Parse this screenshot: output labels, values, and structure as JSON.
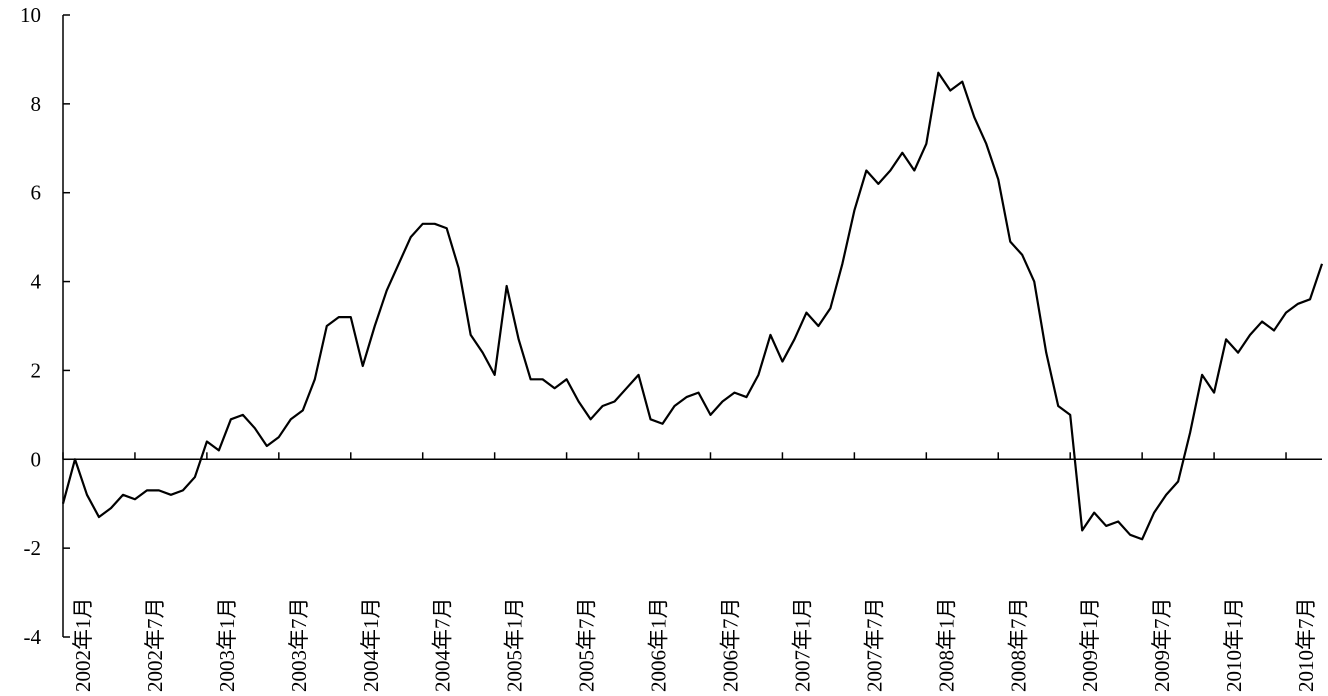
{
  "chart_data": {
    "type": "line",
    "categories": [
      "2002年1月",
      null,
      null,
      null,
      null,
      null,
      "2002年7月",
      null,
      null,
      null,
      null,
      null,
      "2003年1月",
      null,
      null,
      null,
      null,
      null,
      "2003年7月",
      null,
      null,
      null,
      null,
      null,
      "2004年1月",
      null,
      null,
      null,
      null,
      null,
      "2004年7月",
      null,
      null,
      null,
      null,
      null,
      "2005年1月",
      null,
      null,
      null,
      null,
      null,
      "2005年7月",
      null,
      null,
      null,
      null,
      null,
      "2006年1月",
      null,
      null,
      null,
      null,
      null,
      "2006年7月",
      null,
      null,
      null,
      null,
      null,
      "2007年1月",
      null,
      null,
      null,
      null,
      null,
      "2007年7月",
      null,
      null,
      null,
      null,
      null,
      "2008年1月",
      null,
      null,
      null,
      null,
      null,
      "2008年7月",
      null,
      null,
      null,
      null,
      null,
      "2009年1月",
      null,
      null,
      null,
      null,
      null,
      "2009年7月",
      null,
      null,
      null,
      null,
      null,
      "2010年1月",
      null,
      null,
      null,
      null,
      null,
      "2010年7月",
      null,
      null,
      null
    ],
    "values": [
      -1.0,
      0.0,
      -0.8,
      -1.3,
      -1.1,
      -0.8,
      -0.9,
      -0.7,
      -0.7,
      -0.8,
      -0.7,
      -0.4,
      0.4,
      0.2,
      0.9,
      1.0,
      0.7,
      0.3,
      0.5,
      0.9,
      1.1,
      1.8,
      3.0,
      3.2,
      3.2,
      2.1,
      3.0,
      3.8,
      4.4,
      5.0,
      5.3,
      5.3,
      5.2,
      4.3,
      2.8,
      2.4,
      1.9,
      3.9,
      2.7,
      1.8,
      1.8,
      1.6,
      1.8,
      1.3,
      0.9,
      1.2,
      1.3,
      1.6,
      1.9,
      0.9,
      0.8,
      1.2,
      1.4,
      1.5,
      1.0,
      1.3,
      1.5,
      1.4,
      1.9,
      2.8,
      2.2,
      2.7,
      3.3,
      3.0,
      3.4,
      4.4,
      5.6,
      6.5,
      6.2,
      6.5,
      6.9,
      6.5,
      7.1,
      8.7,
      8.3,
      8.5,
      7.7,
      7.1,
      6.3,
      4.9,
      4.6,
      4.0,
      2.4,
      1.2,
      1.0,
      -1.6,
      -1.2,
      -1.5,
      -1.4,
      -1.7,
      -1.8,
      -1.2,
      -0.8,
      -0.5,
      0.6,
      1.9,
      1.5,
      2.7,
      2.4,
      2.8,
      3.1,
      2.9,
      3.3,
      3.5,
      3.6,
      4.4
    ],
    "color": "#000000",
    "ylim": [
      -4,
      10
    ],
    "yticks": [
      -4,
      -2,
      0,
      2,
      4,
      6,
      8,
      10
    ]
  }
}
